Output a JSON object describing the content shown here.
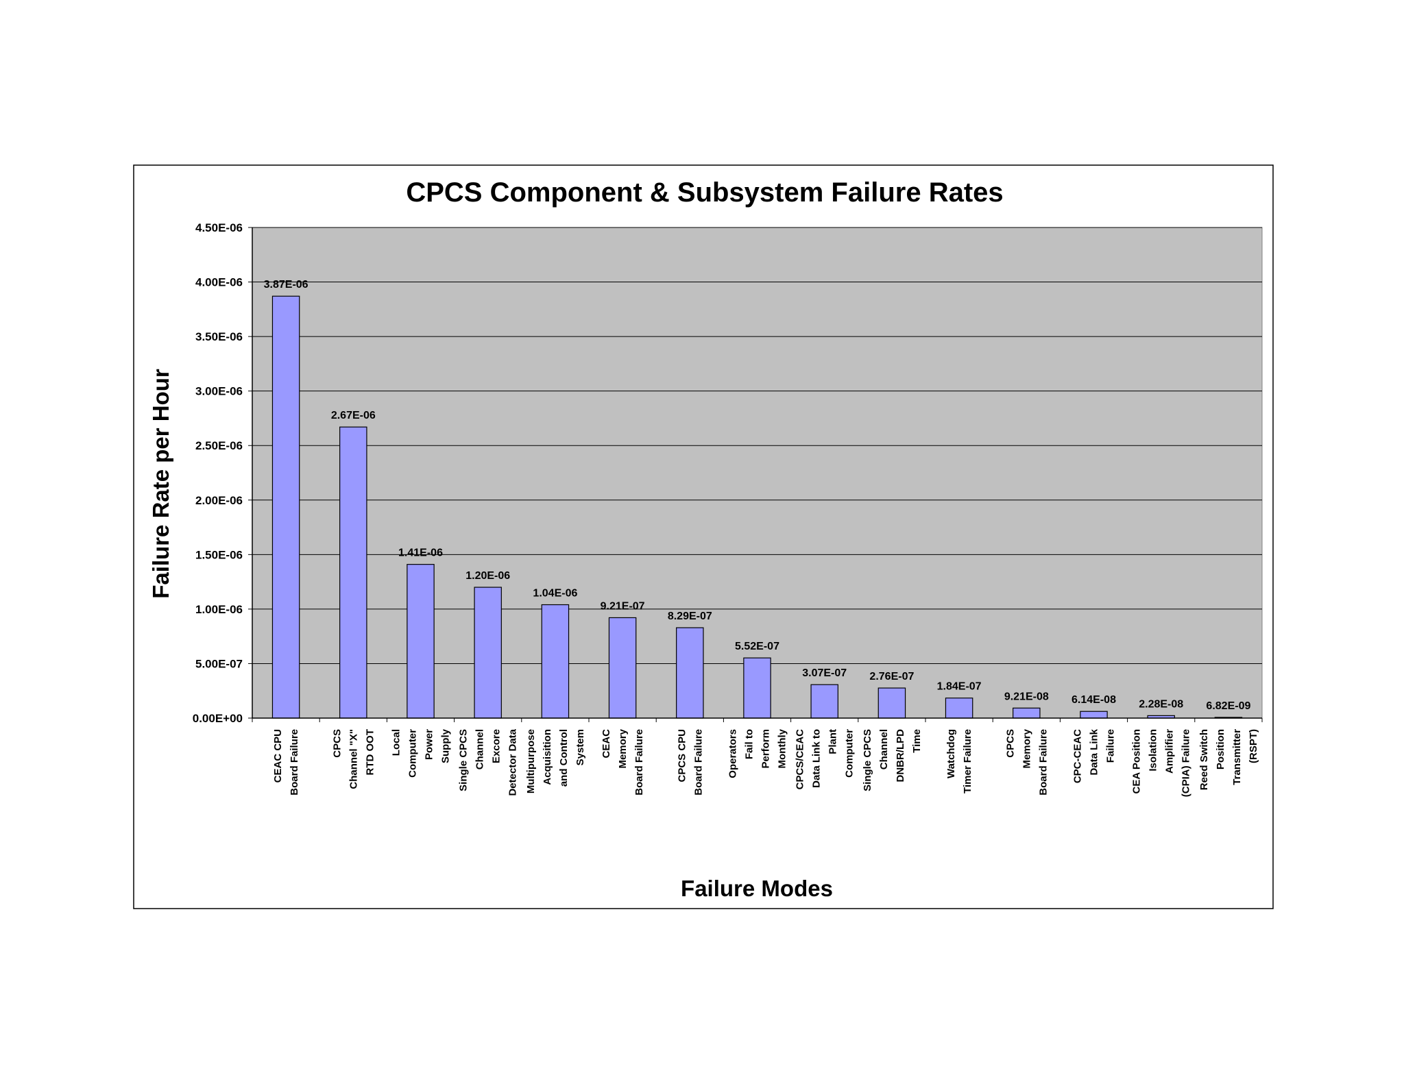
{
  "chart_data": {
    "type": "bar",
    "title": "CPCS Component & Subsystem Failure Rates",
    "xlabel": "Failure Modes",
    "ylabel": "Failure Rate per Hour",
    "ylim": [
      0,
      4.5e-06
    ],
    "yticks": [
      {
        "value": 0,
        "label": "0.00E+00"
      },
      {
        "value": 5e-07,
        "label": "5.00E-07"
      },
      {
        "value": 1e-06,
        "label": "1.00E-06"
      },
      {
        "value": 1.5e-06,
        "label": "1.50E-06"
      },
      {
        "value": 2e-06,
        "label": "2.00E-06"
      },
      {
        "value": 2.5e-06,
        "label": "2.50E-06"
      },
      {
        "value": 3e-06,
        "label": "3.00E-06"
      },
      {
        "value": 3.5e-06,
        "label": "3.50E-06"
      },
      {
        "value": 4e-06,
        "label": "4.00E-06"
      },
      {
        "value": 4.5e-06,
        "label": "4.50E-06"
      }
    ],
    "grid": true,
    "plot_background": "#c0c0c0",
    "bar_color": "#9999ff",
    "categories": [
      [
        "CEAC CPU",
        "Board Failure"
      ],
      [
        "CPCS",
        "Channel \"X\"",
        "RTD OOT"
      ],
      [
        "Local",
        "Computer",
        "Power",
        "Supply"
      ],
      [
        "Single CPCS",
        "Channel",
        "Excore",
        "Detector Data"
      ],
      [
        "Multipurpose",
        "Acquisition",
        "and Control",
        "System"
      ],
      [
        "CEAC",
        "Memory",
        "Board Failure"
      ],
      [
        "CPCS CPU",
        "Board Failure"
      ],
      [
        "Operators",
        "Fail to",
        "Perform",
        "Monthly"
      ],
      [
        "CPCS/CEAC",
        "Data Link to",
        "Plant",
        "Computer"
      ],
      [
        "Single CPCS",
        "Channel",
        "DNBR/LPD",
        "Time"
      ],
      [
        "Watchdog",
        "Timer Failure"
      ],
      [
        "CPCS",
        "Memory",
        "Board Failure"
      ],
      [
        "CPC-CEAC",
        "Data Link",
        "Failure"
      ],
      [
        "CEA Position",
        "Isolation",
        "Amplifier",
        "(CPIA) Failure"
      ],
      [
        "Reed Switch",
        "Position",
        "Transmitter",
        "(RSPT)"
      ]
    ],
    "values": [
      3.87e-06,
      2.67e-06,
      1.41e-06,
      1.2e-06,
      1.04e-06,
      9.21e-07,
      8.29e-07,
      5.52e-07,
      3.07e-07,
      2.76e-07,
      1.84e-07,
      9.21e-08,
      6.14e-08,
      2.28e-08,
      6.82e-09
    ],
    "data_labels": [
      "3.87E-06",
      "2.67E-06",
      "1.41E-06",
      "1.20E-06",
      "1.04E-06",
      "9.21E-07",
      "8.29E-07",
      "5.52E-07",
      "3.07E-07",
      "2.76E-07",
      "1.84E-07",
      "9.21E-08",
      "6.14E-08",
      "2.28E-08",
      "6.82E-09"
    ]
  }
}
